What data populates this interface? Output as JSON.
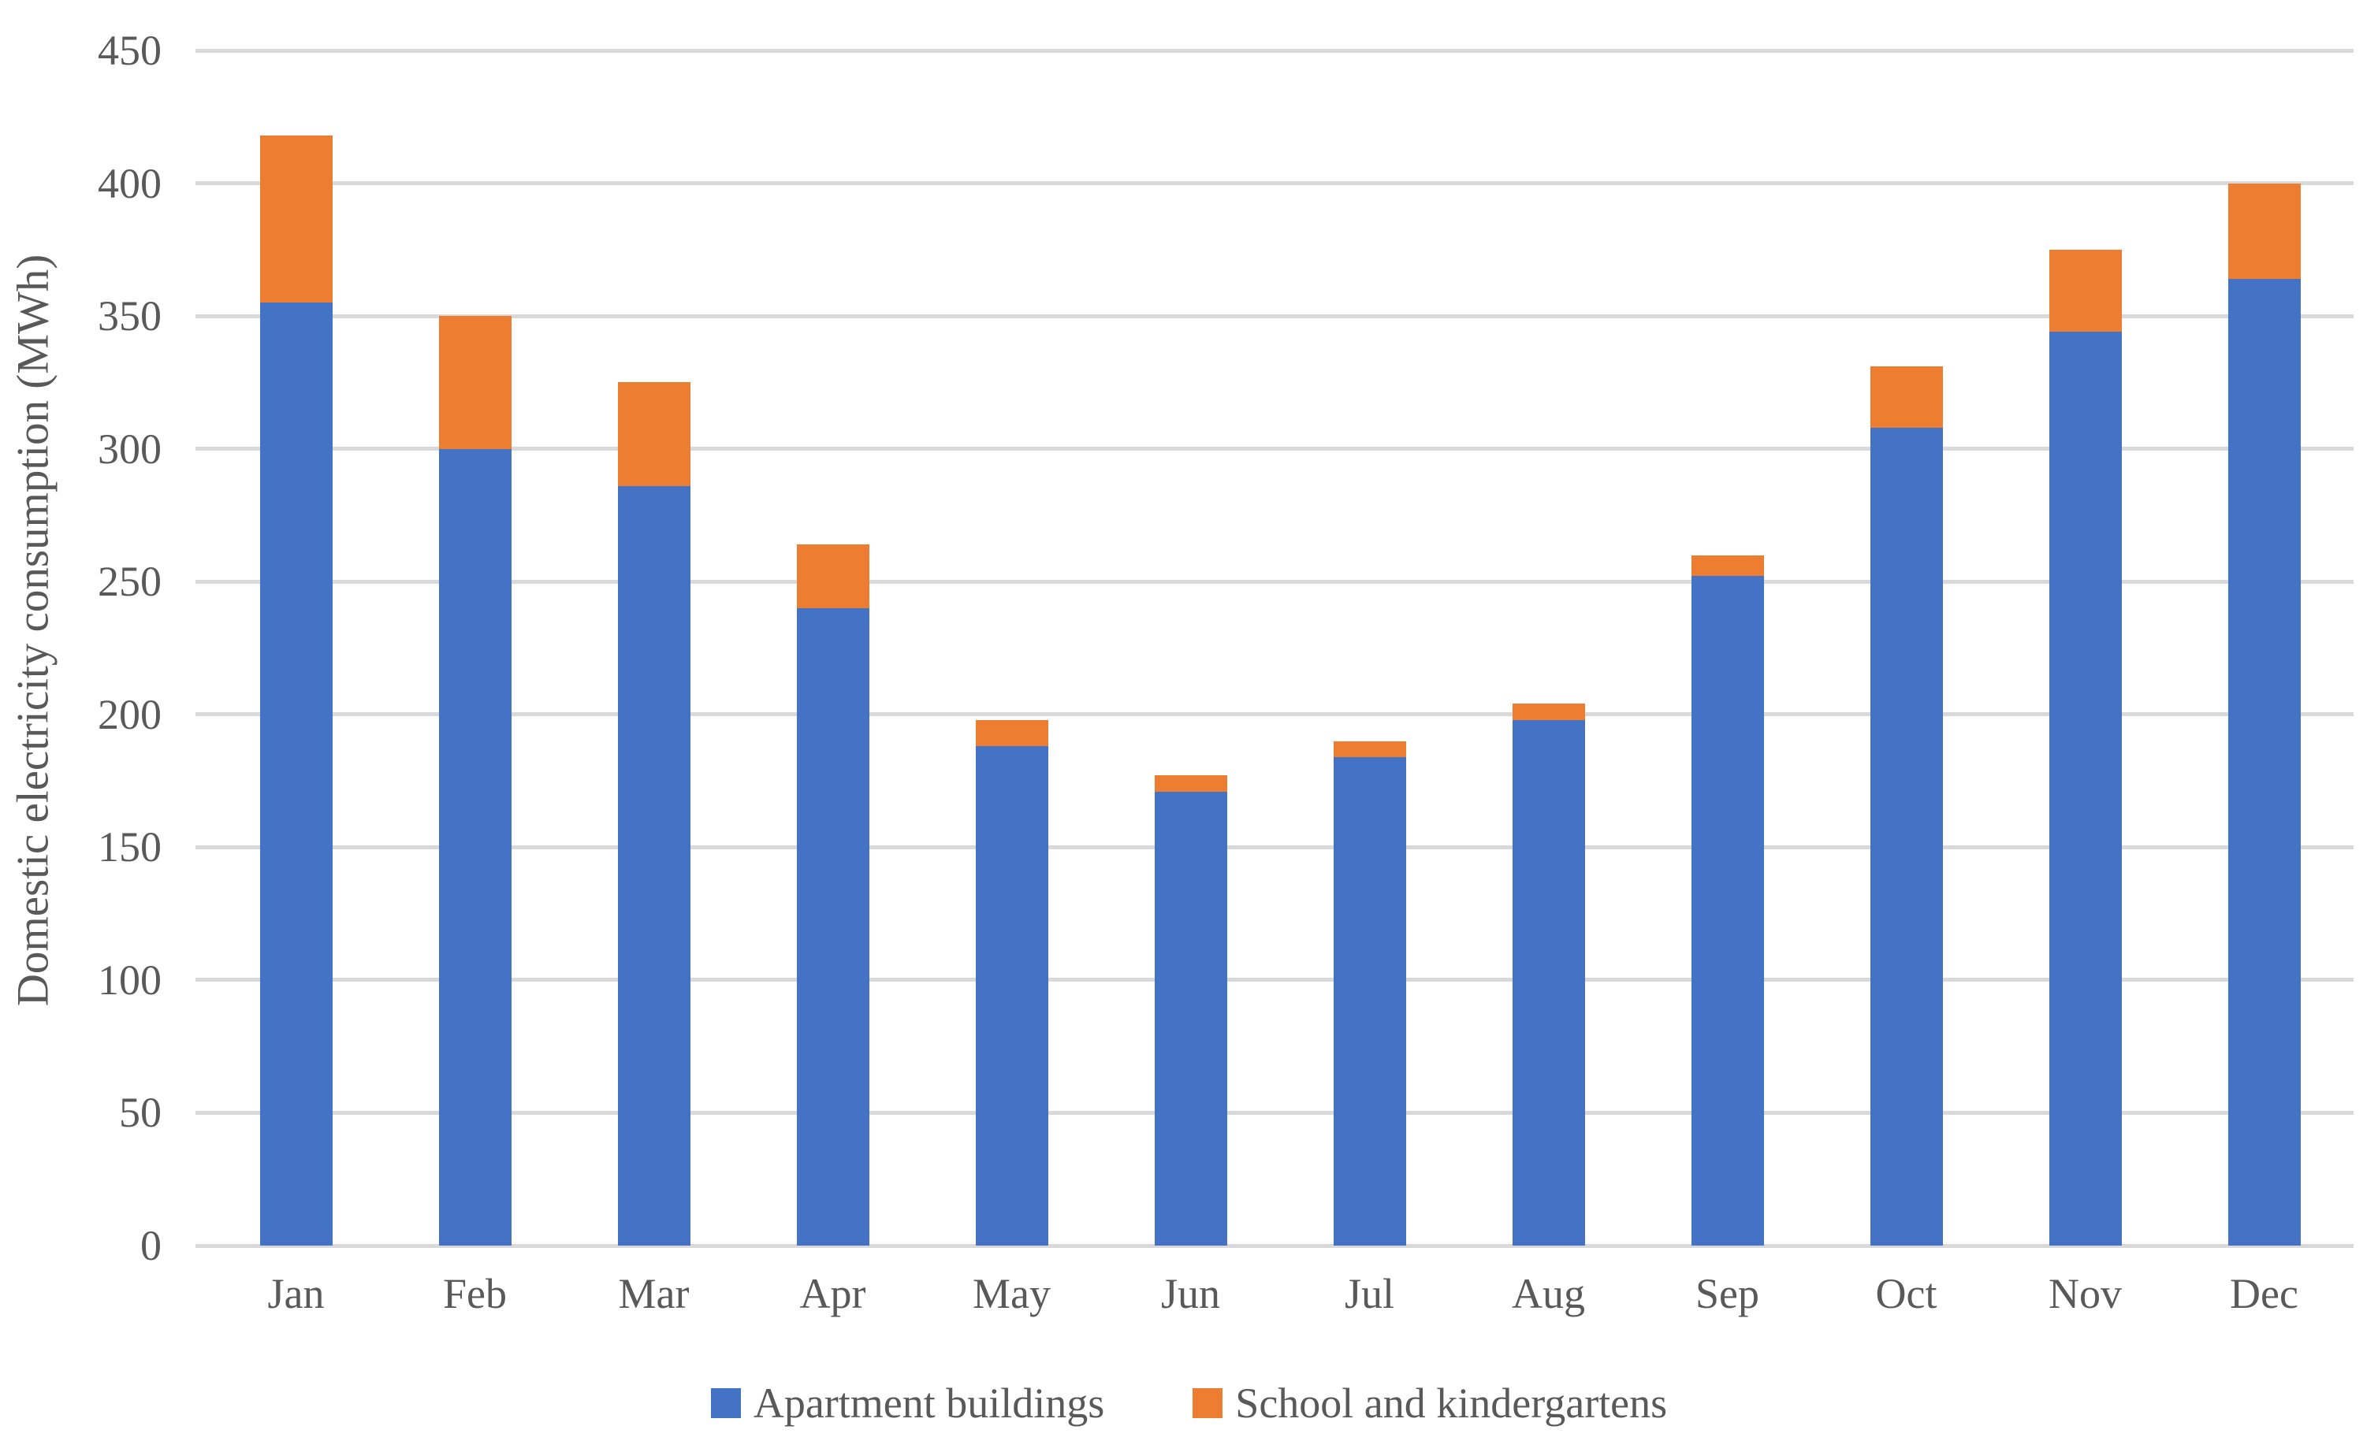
{
  "chart_data": {
    "type": "bar",
    "stacked": true,
    "title": "",
    "xlabel": "",
    "ylabel": "Domestic electricity consumption (MWh)",
    "ylim": [
      0,
      450
    ],
    "ytick_step": 50,
    "yticks": [
      0,
      50,
      100,
      150,
      200,
      250,
      300,
      350,
      400,
      450
    ],
    "grid": "horizontal",
    "legend_position": "bottom",
    "categories": [
      "Jan",
      "Feb",
      "Mar",
      "Apr",
      "May",
      "Jun",
      "Jul",
      "Aug",
      "Sep",
      "Oct",
      "Nov",
      "Dec"
    ],
    "series": [
      {
        "name": "Apartment buildings",
        "color": "#4472C4",
        "values": [
          355,
          300,
          286,
          240,
          188,
          171,
          184,
          198,
          252,
          308,
          344,
          364
        ]
      },
      {
        "name": "School and kindergartens",
        "color": "#ED7D31",
        "values": [
          63,
          50,
          39,
          24,
          10,
          6,
          6,
          6,
          8,
          23,
          31,
          36
        ]
      }
    ],
    "totals": [
      418,
      350,
      325,
      264,
      198,
      177,
      190,
      204,
      260,
      331,
      375,
      400
    ]
  },
  "colors": {
    "gridline": "#D9D9D9",
    "axis_text": "#595959",
    "background": "#FFFFFF"
  }
}
